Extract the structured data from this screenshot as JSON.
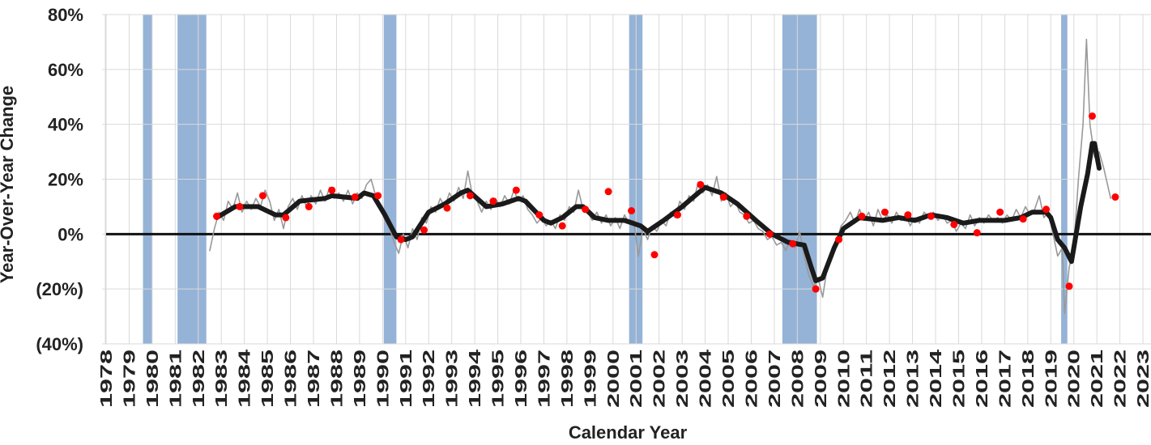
{
  "chart_data": {
    "type": "line",
    "x_label": "Calendar Year",
    "y_label": "Year-Over-Year Change",
    "xlim": [
      1978,
      2023.35
    ],
    "xticks": [
      1978,
      1979,
      1980,
      1981,
      1982,
      1983,
      1984,
      1985,
      1986,
      1987,
      1988,
      1989,
      1990,
      1991,
      1992,
      1993,
      1994,
      1995,
      1996,
      1997,
      1998,
      1999,
      2000,
      2001,
      2002,
      2003,
      2004,
      2005,
      2006,
      2007,
      2008,
      2009,
      2010,
      2011,
      2012,
      2013,
      2014,
      2015,
      2016,
      2017,
      2018,
      2019,
      2020,
      2021,
      2022,
      2023
    ],
    "ylim": [
      -40,
      80
    ],
    "yticks": [
      {
        "value": -40,
        "label": "(40%)"
      },
      {
        "value": -20,
        "label": "(20%)"
      },
      {
        "value": 0,
        "label": "0%"
      },
      {
        "value": 20,
        "label": "20%"
      },
      {
        "value": 40,
        "label": "40%"
      },
      {
        "value": 60,
        "label": "60%"
      },
      {
        "value": 80,
        "label": "80%"
      }
    ],
    "negative_label_color": "#ff0000",
    "grid": true,
    "zero_line": true,
    "recession_color": "#95b3d7",
    "recessions": [
      [
        1979.6,
        1980.0
      ],
      [
        1981.1,
        1982.35
      ],
      [
        1990.05,
        1990.6
      ],
      [
        2000.7,
        2001.28
      ],
      [
        2007.35,
        2008.85
      ],
      [
        2019.45,
        2019.72
      ]
    ],
    "series": [
      {
        "style": "thin",
        "color": "#999999",
        "x": [
          1982.5,
          1982.7,
          1982.9,
          1983.1,
          1983.3,
          1983.5,
          1983.7,
          1983.9,
          1984.1,
          1984.3,
          1984.5,
          1984.7,
          1984.9,
          1985.1,
          1985.3,
          1985.5,
          1985.7,
          1985.9,
          1986.1,
          1986.3,
          1986.5,
          1986.7,
          1986.9,
          1987.1,
          1987.3,
          1987.5,
          1987.7,
          1987.9,
          1988.1,
          1988.3,
          1988.5,
          1988.7,
          1988.9,
          1989.1,
          1989.3,
          1989.5,
          1989.7,
          1989.9,
          1990.1,
          1990.3,
          1990.5,
          1990.7,
          1990.9,
          1991.1,
          1991.3,
          1991.5,
          1991.7,
          1991.9,
          1992.1,
          1992.3,
          1992.5,
          1992.7,
          1992.9,
          1993.1,
          1993.3,
          1993.5,
          1993.7,
          1993.9,
          1994.1,
          1994.3,
          1994.5,
          1994.7,
          1994.9,
          1995.1,
          1995.3,
          1995.5,
          1995.7,
          1995.9,
          1996.1,
          1996.3,
          1996.5,
          1996.7,
          1996.9,
          1997.1,
          1997.3,
          1997.5,
          1997.7,
          1997.9,
          1998.1,
          1998.3,
          1998.5,
          1998.7,
          1998.9,
          1999.1,
          1999.3,
          1999.5,
          1999.7,
          1999.9,
          2000.1,
          2000.3,
          2000.5,
          2000.7,
          2000.9,
          2001.1,
          2001.3,
          2001.5,
          2001.7,
          2001.9,
          2002.1,
          2002.3,
          2002.5,
          2002.7,
          2002.9,
          2003.1,
          2003.3,
          2003.5,
          2003.7,
          2003.9,
          2004.1,
          2004.3,
          2004.5,
          2004.7,
          2004.9,
          2005.1,
          2005.3,
          2005.5,
          2005.7,
          2005.9,
          2006.1,
          2006.3,
          2006.5,
          2006.7,
          2006.9,
          2007.1,
          2007.3,
          2007.5,
          2007.7,
          2007.9,
          2008.1,
          2008.3,
          2008.5,
          2008.7,
          2008.9,
          2009.1,
          2009.3,
          2009.5,
          2009.7,
          2009.9,
          2010.1,
          2010.3,
          2010.5,
          2010.7,
          2010.9,
          2011.1,
          2011.3,
          2011.5,
          2011.7,
          2011.9,
          2012.1,
          2012.3,
          2012.5,
          2012.7,
          2012.9,
          2013.1,
          2013.3,
          2013.5,
          2013.7,
          2013.9,
          2014.1,
          2014.3,
          2014.5,
          2014.7,
          2014.9,
          2015.1,
          2015.3,
          2015.5,
          2015.7,
          2015.9,
          2016.1,
          2016.3,
          2016.5,
          2016.7,
          2016.9,
          2017.1,
          2017.3,
          2017.5,
          2017.7,
          2017.9,
          2018.1,
          2018.3,
          2018.5,
          2018.7,
          2018.9,
          2019.1,
          2019.3,
          2019.5,
          2019.6,
          2019.8,
          2020.0,
          2020.2,
          2020.4,
          2020.55,
          2020.7,
          2020.9,
          2021.1,
          2021.3,
          2021.6
        ],
        "values": [
          -6,
          2,
          8,
          5,
          12,
          9,
          15,
          8,
          12,
          9,
          13,
          10,
          16,
          12,
          5,
          9,
          2,
          10,
          13,
          9,
          14,
          10,
          14,
          11,
          16,
          12,
          17,
          13,
          15,
          12,
          16,
          11,
          15,
          13,
          18,
          20,
          14,
          10,
          5,
          2,
          -3,
          -7,
          0,
          -5,
          2,
          -2,
          6,
          4,
          10,
          8,
          13,
          10,
          15,
          12,
          17,
          13,
          23,
          14,
          12,
          8,
          12,
          9,
          13,
          10,
          14,
          11,
          16,
          12,
          14,
          9,
          7,
          4,
          6,
          3,
          5,
          2,
          7,
          5,
          10,
          8,
          16,
          9,
          8,
          5,
          8,
          4,
          7,
          3,
          6,
          2,
          7,
          4,
          5,
          -8,
          2,
          -2,
          3,
          1,
          5,
          3,
          8,
          6,
          12,
          9,
          14,
          12,
          19,
          15,
          18,
          14,
          21,
          12,
          15,
          10,
          12,
          8,
          7,
          4,
          5,
          2,
          1,
          -2,
          -1,
          -4,
          -3,
          -6,
          -2,
          -5,
          1,
          -8,
          -15,
          -19,
          -16,
          -23,
          -12,
          -8,
          -3,
          3,
          5,
          8,
          4,
          9,
          5,
          8,
          3,
          9,
          5,
          7,
          4,
          8,
          5,
          7,
          3,
          6,
          4,
          8,
          6,
          8,
          5,
          7,
          4,
          5,
          1,
          4,
          2,
          7,
          3,
          6,
          4,
          7,
          5,
          6,
          4,
          7,
          5,
          9,
          6,
          10,
          7,
          9,
          14,
          6,
          8,
          0,
          -8,
          -5,
          -29,
          -12,
          -5,
          20,
          40,
          71,
          40,
          28,
          30,
          24,
          13
        ]
      },
      {
        "style": "thick",
        "color": "#1a1a1a",
        "x": [
          1982.8,
          1983.6,
          1984.6,
          1985.35,
          1985.7,
          1986.4,
          1987.5,
          1987.8,
          1988.9,
          1989.2,
          1989.6,
          1990.1,
          1990.6,
          1991.0,
          1991.3,
          1992.0,
          1992.7,
          1993.4,
          1993.7,
          1994.5,
          1995.2,
          1995.9,
          1996.2,
          1997.0,
          1997.3,
          1997.8,
          1998.4,
          1998.7,
          1999.2,
          1999.8,
          2000.5,
          2001.2,
          2001.5,
          2002.2,
          2003.0,
          2003.7,
          2004.0,
          2004.7,
          2005.4,
          2006.2,
          2006.9,
          2007.6,
          2008.3,
          2008.6,
          2008.8,
          2009.1,
          2009.6,
          2010.0,
          2010.7,
          2011.7,
          2012.4,
          2013.1,
          2013.8,
          2014.5,
          2015.2,
          2015.9,
          2017.0,
          2017.7,
          2018.2,
          2018.8,
          2019.0,
          2019.3,
          2019.6,
          2019.9,
          2020.1,
          2020.3,
          2020.6,
          2020.8,
          2020.9,
          2021.1
        ],
        "values": [
          6,
          10,
          10,
          7,
          7,
          12,
          13,
          14,
          13,
          15,
          14,
          7,
          -1,
          -2,
          -1,
          8,
          11,
          15,
          16,
          10,
          11,
          13,
          12,
          5,
          4,
          6,
          10,
          10,
          6,
          5,
          5,
          3,
          1,
          5,
          10,
          15,
          17,
          15,
          11,
          5,
          0,
          -3,
          -4,
          -12,
          -17,
          -16,
          -5,
          2,
          6,
          5,
          6,
          5,
          7,
          6,
          4,
          5,
          5,
          6,
          8,
          8,
          6,
          -2,
          -5,
          -10,
          0,
          10,
          22,
          33,
          33,
          24
        ]
      },
      {
        "style": "dots",
        "color": "#ff0000",
        "x": [
          1982.8,
          1983.8,
          1984.8,
          1985.8,
          1986.8,
          1987.8,
          1988.8,
          1989.8,
          1990.8,
          1991.8,
          1992.8,
          1993.8,
          1994.8,
          1995.8,
          1996.8,
          1997.8,
          1998.8,
          1999.8,
          2000.8,
          2001.8,
          2002.8,
          2003.8,
          2004.8,
          2005.8,
          2006.8,
          2007.8,
          2008.8,
          2009.8,
          2010.8,
          2011.8,
          2012.8,
          2013.8,
          2014.8,
          2015.8,
          2016.8,
          2017.8,
          2018.8,
          2019.8,
          2020.8,
          2021.8
        ],
        "values": [
          6.5,
          10,
          14,
          6,
          10,
          16,
          13.5,
          14,
          -2,
          1.5,
          9.5,
          14,
          12,
          16,
          7,
          3,
          9,
          15.5,
          8.5,
          -7.5,
          7,
          18,
          13.5,
          6.5,
          0,
          -3.5,
          -20,
          -2,
          6.5,
          8,
          7,
          6.5,
          3.5,
          0.5,
          8,
          5.5,
          9,
          -19,
          43,
          13.5
        ]
      }
    ]
  }
}
